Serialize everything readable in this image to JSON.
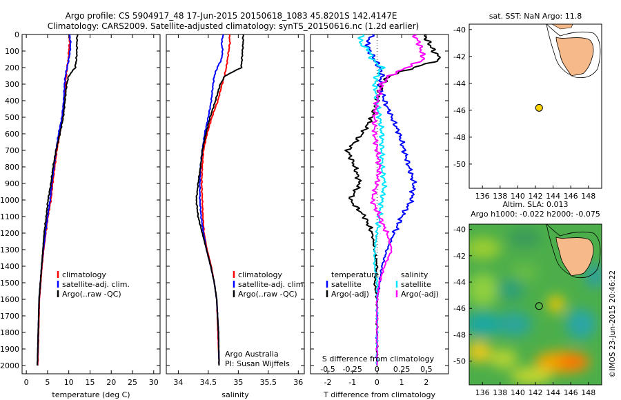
{
  "title_line1": "Argo profile: CS 5904917_48 17-Jun-2015 20150618_1083 45.8201S 142.4147E",
  "title_line2": "Climatology: CARS2009. Satellite-adjusted climatology: synTS_20150616.nc (1.2d earlier)",
  "watermark": "©IMOS 23-Jun-2015 20:46:22",
  "colors": {
    "clim": "#ff0000",
    "sat": "#0000ff",
    "argo": "#000000",
    "sat_s": "#00e5ff",
    "argo_s": "#ff00ff",
    "land": "#f6b98a",
    "marker": "#ffd400"
  },
  "depth_axis": {
    "min": 0,
    "max": 2050,
    "ticks": [
      0,
      100,
      200,
      300,
      400,
      500,
      600,
      700,
      800,
      900,
      1000,
      1100,
      1200,
      1300,
      1400,
      1500,
      1600,
      1700,
      1800,
      1900,
      2000
    ]
  },
  "chart_data": [
    {
      "type": "line",
      "name": "temperature",
      "xlabel": "temperature (deg C)",
      "xlim": [
        -1,
        31.5
      ],
      "xticks": [
        0,
        5,
        10,
        15,
        20,
        25,
        30
      ],
      "ylim": [
        0,
        2050
      ],
      "legend": [
        "climatology",
        "satellite-adj. clim.",
        "Argo(..raw -QC)"
      ],
      "series": [
        {
          "name": "climatology",
          "color": "clim",
          "x": [
            10.1,
            10.2,
            10.0,
            9.9,
            9.6,
            9.4,
            9.2,
            8.9,
            8.4,
            7.9,
            7.2,
            6.7,
            6.2,
            5.8,
            5.1,
            4.6,
            4.1,
            3.7,
            3.4,
            3.1,
            2.9,
            2.7
          ],
          "y": [
            0,
            50,
            100,
            150,
            200,
            250,
            300,
            400,
            500,
            600,
            700,
            800,
            900,
            1000,
            1100,
            1200,
            1300,
            1400,
            1500,
            1600,
            1800,
            2000
          ]
        },
        {
          "name": "satellite-adj. clim.",
          "color": "sat",
          "x": [
            10.2,
            10.4,
            10.3,
            10.0,
            9.6,
            9.2,
            9.0,
            8.8,
            8.4,
            7.6,
            7.0,
            6.5,
            6.0,
            5.6,
            5.0,
            4.5,
            4.0,
            3.6,
            3.3,
            3.0,
            2.8,
            2.6
          ],
          "y": [
            0,
            50,
            100,
            150,
            200,
            250,
            300,
            400,
            500,
            600,
            700,
            800,
            900,
            1000,
            1100,
            1200,
            1300,
            1400,
            1500,
            1600,
            1800,
            2000
          ]
        },
        {
          "name": "Argo(..raw -QC)",
          "color": "argo",
          "x": [
            12.0,
            11.9,
            11.9,
            11.8,
            11.5,
            10.0,
            9.5,
            9.1,
            8.7,
            7.9,
            7.0,
            6.3,
            5.8,
            5.1,
            4.7,
            4.2,
            3.9,
            3.6,
            3.3,
            3.0,
            2.8,
            2.6
          ],
          "y": [
            0,
            50,
            100,
            150,
            200,
            250,
            300,
            400,
            500,
            600,
            700,
            800,
            900,
            1000,
            1100,
            1200,
            1300,
            1400,
            1500,
            1600,
            1800,
            2000
          ]
        }
      ]
    },
    {
      "type": "line",
      "name": "salinity",
      "xlabel": "salinity",
      "xlim": [
        33.8,
        36.1
      ],
      "xticks": [
        34,
        34.5,
        35,
        35.5,
        36
      ],
      "ylim": [
        0,
        2050
      ],
      "legend": [
        "climatology",
        "satellite-adj. clim.",
        "Argo(..raw -QC)"
      ],
      "series": [
        {
          "name": "climatology",
          "color": "clim",
          "x": [
            34.85,
            34.86,
            34.84,
            34.82,
            34.8,
            34.77,
            34.73,
            34.66,
            34.56,
            34.48,
            34.42,
            34.4,
            34.39,
            34.4,
            34.41,
            34.43,
            34.48,
            34.55,
            34.6,
            34.64,
            34.66,
            34.68
          ],
          "y": [
            0,
            50,
            100,
            150,
            200,
            250,
            300,
            400,
            500,
            600,
            700,
            800,
            900,
            1000,
            1100,
            1200,
            1300,
            1400,
            1500,
            1600,
            1800,
            2000
          ]
        },
        {
          "name": "satellite-adj. clim.",
          "color": "sat",
          "x": [
            34.75,
            34.72,
            34.74,
            34.72,
            34.65,
            34.6,
            34.58,
            34.55,
            34.5,
            34.44,
            34.4,
            34.37,
            34.36,
            34.36,
            34.38,
            34.42,
            34.47,
            34.54,
            34.6,
            34.64,
            34.67,
            34.68
          ],
          "y": [
            0,
            50,
            100,
            150,
            200,
            250,
            300,
            400,
            500,
            600,
            700,
            800,
            900,
            1000,
            1100,
            1200,
            1300,
            1400,
            1500,
            1600,
            1800,
            2000
          ]
        },
        {
          "name": "Argo(..raw -QC)",
          "color": "argo",
          "x": [
            35.08,
            35.08,
            35.07,
            35.06,
            35.05,
            34.78,
            34.7,
            34.62,
            34.53,
            34.46,
            34.4,
            34.37,
            34.33,
            34.3,
            34.33,
            34.4,
            34.47,
            34.54,
            34.6,
            34.64,
            34.67,
            34.68
          ],
          "y": [
            0,
            50,
            100,
            150,
            200,
            250,
            300,
            400,
            500,
            600,
            700,
            800,
            900,
            1000,
            1100,
            1200,
            1300,
            1400,
            1500,
            1600,
            1800,
            2000
          ]
        }
      ]
    },
    {
      "type": "line",
      "name": "difference from climatology",
      "xlabel": "T difference from climatology",
      "xlabel_top": "S difference from climatology",
      "xlim": [
        -2.7,
        2.9
      ],
      "xticks": [
        -2,
        -1,
        0,
        1,
        2
      ],
      "xticks_top": [
        "-0.5",
        "-0.25",
        "0",
        "0.25",
        "0.5"
      ],
      "ylim": [
        0,
        2050
      ],
      "legend_left_title": "temperature",
      "legend_right_title": "salinity",
      "legend_left": [
        "satellite",
        "Argo(-adj)"
      ],
      "legend_right": [
        "satellite",
        "Argo(-adj)"
      ],
      "series": [
        {
          "name": "T satellite",
          "color": "sat",
          "x": [
            -0.2,
            -0.4,
            -0.3,
            -0.1,
            0.1,
            0.2,
            0.1,
            0.3,
            0.6,
            0.9,
            1.1,
            1.3,
            1.5,
            1.4,
            1.0,
            0.7,
            0.4,
            0.2,
            0.1,
            0.0,
            0.0,
            0.0
          ],
          "y": [
            0,
            50,
            100,
            150,
            200,
            250,
            300,
            400,
            500,
            600,
            700,
            800,
            900,
            1000,
            1100,
            1200,
            1300,
            1400,
            1500,
            1600,
            1800,
            2000
          ]
        },
        {
          "name": "T Argo(-adj)",
          "color": "argo",
          "x": [
            1.9,
            2.1,
            2.3,
            2.6,
            1.5,
            0.5,
            0.2,
            0.0,
            -0.2,
            -0.6,
            -1.2,
            -0.9,
            -0.7,
            -1.1,
            -0.5,
            -0.2,
            -0.1,
            0.0,
            -0.1,
            0.0,
            0.0,
            0.0
          ],
          "y": [
            0,
            50,
            100,
            150,
            200,
            250,
            300,
            400,
            500,
            600,
            700,
            800,
            900,
            1000,
            1100,
            1200,
            1300,
            1400,
            1500,
            1600,
            1800,
            2000
          ]
        },
        {
          "name": "S satellite",
          "color": "sat_s",
          "x": [
            -0.6,
            -0.7,
            -0.3,
            -0.2,
            0.2,
            0.0,
            -0.1,
            0.0,
            0.1,
            0.2,
            0.2,
            0.2,
            0.3,
            0.2,
            0.1,
            0.0,
            -0.1,
            -0.1,
            0.0,
            0.0,
            0.0,
            0.0
          ],
          "y": [
            0,
            50,
            100,
            150,
            200,
            250,
            300,
            400,
            500,
            600,
            700,
            800,
            900,
            1000,
            1100,
            1200,
            1300,
            1400,
            1500,
            1600,
            1800,
            2000
          ]
        },
        {
          "name": "S Argo(-adj)",
          "color": "argo_s",
          "x": [
            1.5,
            1.7,
            1.8,
            1.9,
            1.2,
            0.5,
            0.2,
            0.0,
            -0.1,
            -0.1,
            0.0,
            0.1,
            0.0,
            -0.2,
            0.1,
            0.4,
            0.6,
            0.3,
            0.1,
            0.0,
            0.0,
            0.0
          ],
          "y": [
            0,
            50,
            100,
            150,
            200,
            250,
            300,
            400,
            500,
            600,
            700,
            800,
            900,
            1000,
            1100,
            1200,
            1300,
            1400,
            1500,
            1600,
            1800,
            2000
          ]
        }
      ]
    },
    {
      "type": "map",
      "name": "sst map",
      "title": "sat. SST: NaN Argo: 11.8",
      "xlim": [
        134.5,
        149.5
      ],
      "ylim": [
        -51.8,
        -39.6
      ],
      "xticks": [
        136,
        138,
        140,
        142,
        144,
        146,
        148
      ],
      "yticks": [
        -40,
        -42,
        -44,
        -46,
        -48,
        -50
      ],
      "float_lon": 142.4147,
      "float_lat": -45.8201
    },
    {
      "type": "heatmap",
      "name": "sla map",
      "title_line1": "Altim. SLA: 0.013",
      "title_line2": "Argo h1000: -0.022 h2000: -0.075",
      "xlim": [
        134.5,
        149.5
      ],
      "ylim": [
        -51.8,
        -39.6
      ],
      "xticks": [
        136,
        138,
        140,
        142,
        144,
        146,
        148
      ],
      "yticks": [
        -40,
        -42,
        -44,
        -46,
        -48,
        -50
      ],
      "float_lon": 142.4147,
      "float_lat": -45.8201
    }
  ],
  "annotations": {
    "institution": "Argo Australia",
    "pi": "PI: Susan Wijffels"
  }
}
